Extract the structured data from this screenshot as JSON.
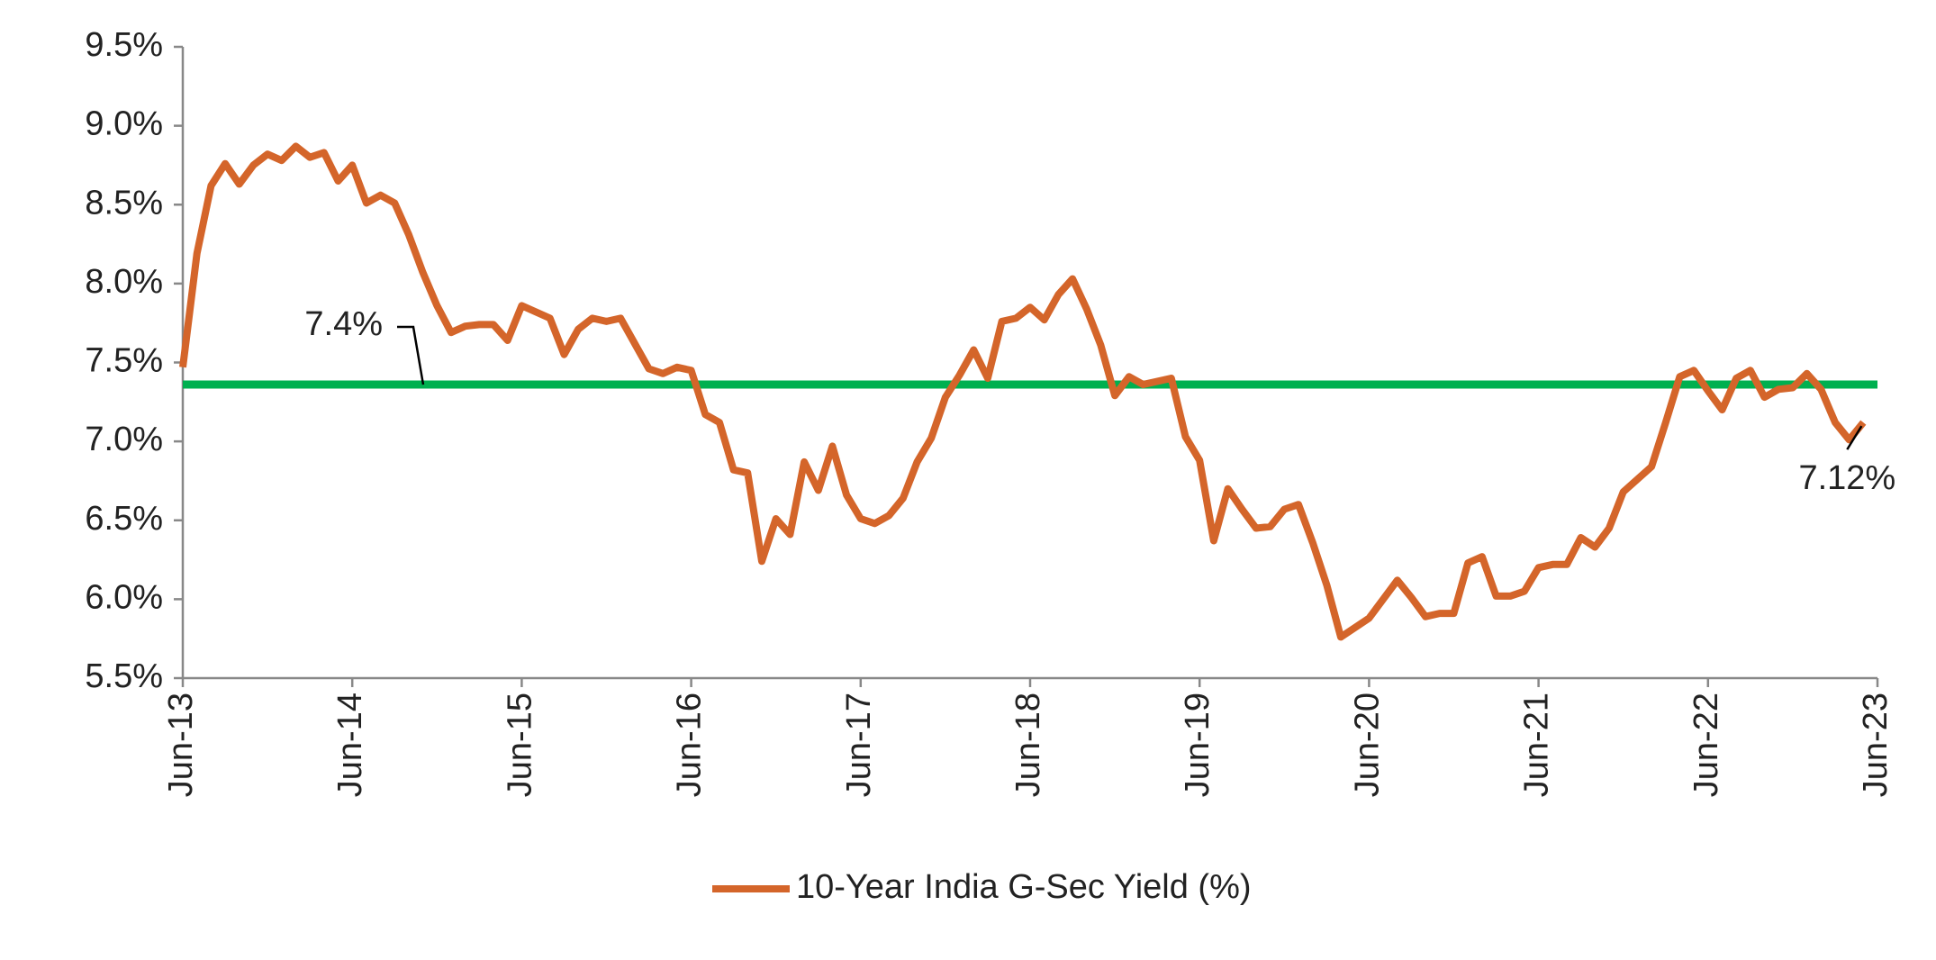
{
  "chart_data": {
    "type": "line",
    "x": [
      "Jun-13",
      "Jul-13",
      "Aug-13",
      "Sep-13",
      "Oct-13",
      "Nov-13",
      "Dec-13",
      "Jan-14",
      "Feb-14",
      "Mar-14",
      "Apr-14",
      "May-14",
      "Jun-14",
      "Jul-14",
      "Aug-14",
      "Sep-14",
      "Oct-14",
      "Nov-14",
      "Dec-14",
      "Jan-15",
      "Feb-15",
      "Mar-15",
      "Apr-15",
      "May-15",
      "Jun-15",
      "Jul-15",
      "Aug-15",
      "Sep-15",
      "Oct-15",
      "Nov-15",
      "Dec-15",
      "Jan-16",
      "Feb-16",
      "Mar-16",
      "Apr-16",
      "May-16",
      "Jun-16",
      "Jul-16",
      "Aug-16",
      "Sep-16",
      "Oct-16",
      "Nov-16",
      "Dec-16",
      "Jan-17",
      "Feb-17",
      "Mar-17",
      "Apr-17",
      "May-17",
      "Jun-17",
      "Jul-17",
      "Aug-17",
      "Sep-17",
      "Oct-17",
      "Nov-17",
      "Dec-17",
      "Jan-18",
      "Feb-18",
      "Mar-18",
      "Apr-18",
      "May-18",
      "Jun-18",
      "Jul-18",
      "Aug-18",
      "Sep-18",
      "Oct-18",
      "Nov-18",
      "Dec-18",
      "Jan-19",
      "Feb-19",
      "Mar-19",
      "Apr-19",
      "May-19",
      "Jun-19",
      "Jul-19",
      "Aug-19",
      "Sep-19",
      "Oct-19",
      "Nov-19",
      "Dec-19",
      "Jan-20",
      "Feb-20",
      "Mar-20",
      "Apr-20",
      "May-20",
      "Jun-20",
      "Jul-20",
      "Aug-20",
      "Sep-20",
      "Oct-20",
      "Nov-20",
      "Dec-20",
      "Jan-21",
      "Feb-21",
      "Mar-21",
      "Apr-21",
      "May-21",
      "Jun-21",
      "Jul-21",
      "Aug-21",
      "Sep-21",
      "Oct-21",
      "Nov-21",
      "Dec-21",
      "Jan-22",
      "Feb-22",
      "Mar-22",
      "Apr-22",
      "May-22",
      "Jun-22",
      "Jul-22",
      "Aug-22",
      "Sep-22",
      "Oct-22",
      "Nov-22",
      "Dec-22",
      "Jan-23",
      "Feb-23",
      "Mar-23",
      "Apr-23",
      "May-23"
    ],
    "series": [
      {
        "name": "10-Year India G-Sec Yield (%)",
        "color": "#d4652a",
        "values": [
          7.47,
          8.19,
          8.62,
          8.76,
          8.63,
          8.75,
          8.82,
          8.78,
          8.87,
          8.8,
          8.83,
          8.65,
          8.75,
          8.51,
          8.56,
          8.51,
          8.31,
          8.07,
          7.86,
          7.69,
          7.73,
          7.74,
          7.74,
          7.64,
          7.86,
          7.82,
          7.78,
          7.55,
          7.71,
          7.78,
          7.76,
          7.78,
          7.62,
          7.46,
          7.43,
          7.47,
          7.45,
          7.17,
          7.12,
          6.82,
          6.8,
          6.24,
          6.51,
          6.41,
          6.87,
          6.69,
          6.97,
          6.66,
          6.51,
          6.48,
          6.53,
          6.64,
          6.87,
          7.02,
          7.28,
          7.42,
          7.58,
          7.4,
          7.76,
          7.78,
          7.85,
          7.77,
          7.93,
          8.03,
          7.84,
          7.61,
          7.29,
          7.41,
          7.36,
          7.38,
          7.4,
          7.03,
          6.88,
          6.37,
          6.7,
          6.57,
          6.45,
          6.46,
          6.57,
          6.6,
          6.36,
          6.09,
          5.76,
          5.82,
          5.88,
          6.0,
          6.12,
          6.01,
          5.89,
          5.91,
          5.91,
          6.23,
          6.27,
          6.02,
          6.02,
          6.05,
          6.2,
          6.22,
          6.22,
          6.39,
          6.33,
          6.45,
          6.68,
          6.76,
          6.84,
          7.12,
          7.41,
          7.45,
          7.32,
          7.2,
          7.4,
          7.45,
          7.28,
          7.33,
          7.34,
          7.43,
          7.33,
          7.12,
          7.01,
          7.12
        ],
        "end_label": "7.12%"
      }
    ],
    "reference_line": {
      "value": 7.36,
      "label": "7.4%",
      "color": "#00b050"
    },
    "xlim": [
      "Jun-13",
      "Jun-23"
    ],
    "xticks": [
      "Jun-13",
      "Jun-14",
      "Jun-15",
      "Jun-16",
      "Jun-17",
      "Jun-18",
      "Jun-19",
      "Jun-20",
      "Jun-21",
      "Jun-22",
      "Jun-23"
    ],
    "ylim": [
      5.5,
      9.5
    ],
    "yticks": [
      {
        "value": 5.5,
        "label": "5.5%"
      },
      {
        "value": 6,
        "label": "6.0%"
      },
      {
        "value": 6.5,
        "label": "6.5%"
      },
      {
        "value": 7,
        "label": "7.0%"
      },
      {
        "value": 7.5,
        "label": "7.5%"
      },
      {
        "value": 8,
        "label": "8.0%"
      },
      {
        "value": 8.5,
        "label": "8.5%"
      },
      {
        "value": 9,
        "label": "9.0%"
      },
      {
        "value": 9.5,
        "label": "9.5%"
      }
    ],
    "grid": false,
    "legend": "bottom"
  }
}
